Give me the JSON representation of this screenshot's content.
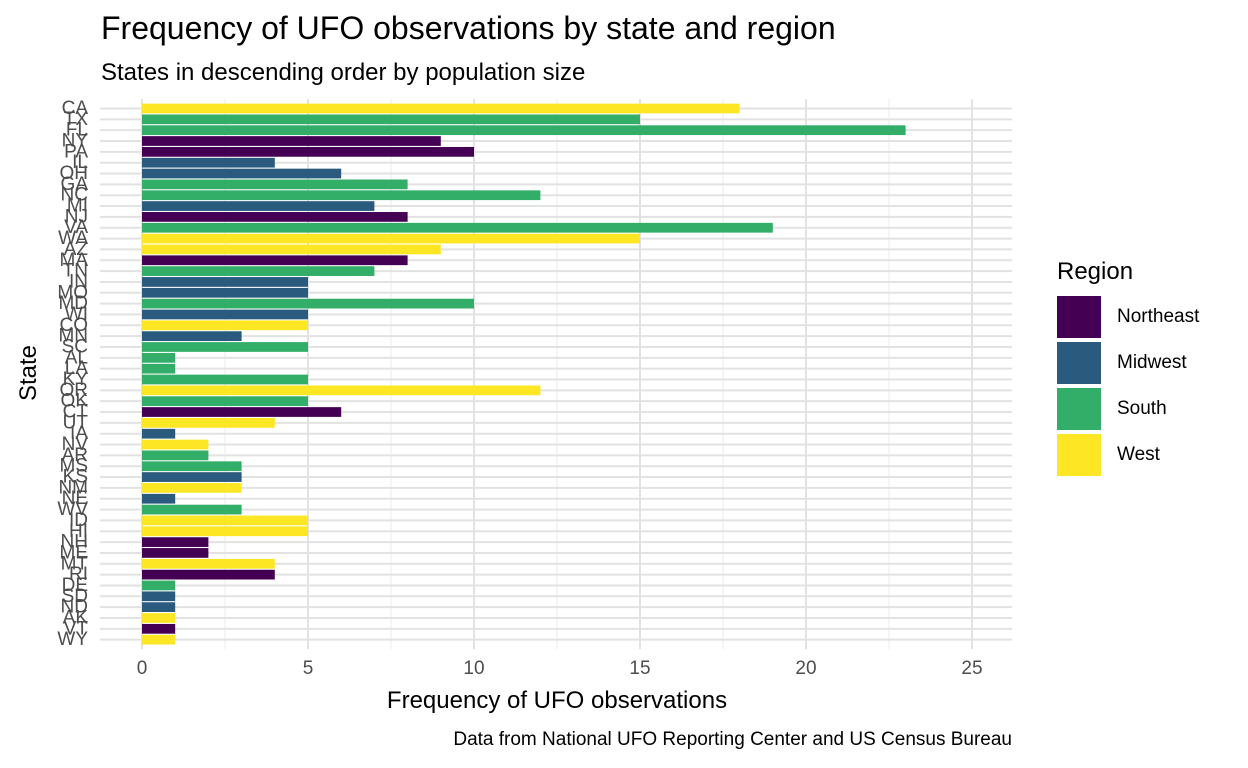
{
  "title": "Frequency of UFO observations by state and region",
  "subtitle": "States in descending order by population size",
  "caption": "Data from National UFO Reporting Center and US Census Bureau",
  "legend": {
    "title": "Region",
    "items": [
      {
        "label": "Northeast",
        "color": "#440154"
      },
      {
        "label": "Midwest",
        "color": "#2A5B7F"
      },
      {
        "label": "South",
        "color": "#33AE68"
      },
      {
        "label": "West",
        "color": "#FDE725"
      }
    ]
  },
  "chart_data": {
    "type": "bar",
    "orientation": "horizontal",
    "title": "Frequency of UFO observations by state and region",
    "subtitle": "States in descending order by population size",
    "xlabel": "Frequency of UFO observations",
    "ylabel": "State",
    "xlim": [
      0,
      25
    ],
    "xticks": [
      0,
      5,
      10,
      15,
      20,
      25
    ],
    "grid": true,
    "legend_position": "right",
    "categories": [
      "CA",
      "TX",
      "FL",
      "NY",
      "PA",
      "IL",
      "OH",
      "GA",
      "NC",
      "MI",
      "NJ",
      "VA",
      "WA",
      "AZ",
      "MA",
      "TN",
      "IN",
      "MO",
      "MD",
      "WI",
      "CO",
      "MN",
      "SC",
      "AL",
      "LA",
      "KY",
      "OR",
      "OK",
      "CT",
      "UT",
      "IA",
      "NV",
      "AR",
      "MS",
      "KS",
      "NM",
      "NE",
      "WV",
      "ID",
      "HI",
      "NH",
      "ME",
      "MT",
      "RI",
      "DE",
      "SD",
      "ND",
      "AK",
      "VT",
      "WY"
    ],
    "values": [
      18,
      15,
      23,
      9,
      10,
      4,
      6,
      8,
      12,
      7,
      8,
      19,
      15,
      9,
      8,
      7,
      5,
      5,
      10,
      5,
      5,
      3,
      5,
      1,
      1,
      5,
      12,
      5,
      6,
      4,
      1,
      2,
      2,
      3,
      3,
      3,
      1,
      3,
      5,
      5,
      2,
      2,
      4,
      4,
      1,
      1,
      1,
      1,
      1,
      1
    ],
    "regions": [
      "West",
      "South",
      "South",
      "Northeast",
      "Northeast",
      "Midwest",
      "Midwest",
      "South",
      "South",
      "Midwest",
      "Northeast",
      "South",
      "West",
      "West",
      "Northeast",
      "South",
      "Midwest",
      "Midwest",
      "South",
      "Midwest",
      "West",
      "Midwest",
      "South",
      "South",
      "South",
      "South",
      "West",
      "South",
      "Northeast",
      "West",
      "Midwest",
      "West",
      "South",
      "South",
      "Midwest",
      "West",
      "Midwest",
      "South",
      "West",
      "West",
      "Northeast",
      "Northeast",
      "West",
      "Northeast",
      "South",
      "Midwest",
      "Midwest",
      "West",
      "Northeast",
      "West"
    ]
  }
}
